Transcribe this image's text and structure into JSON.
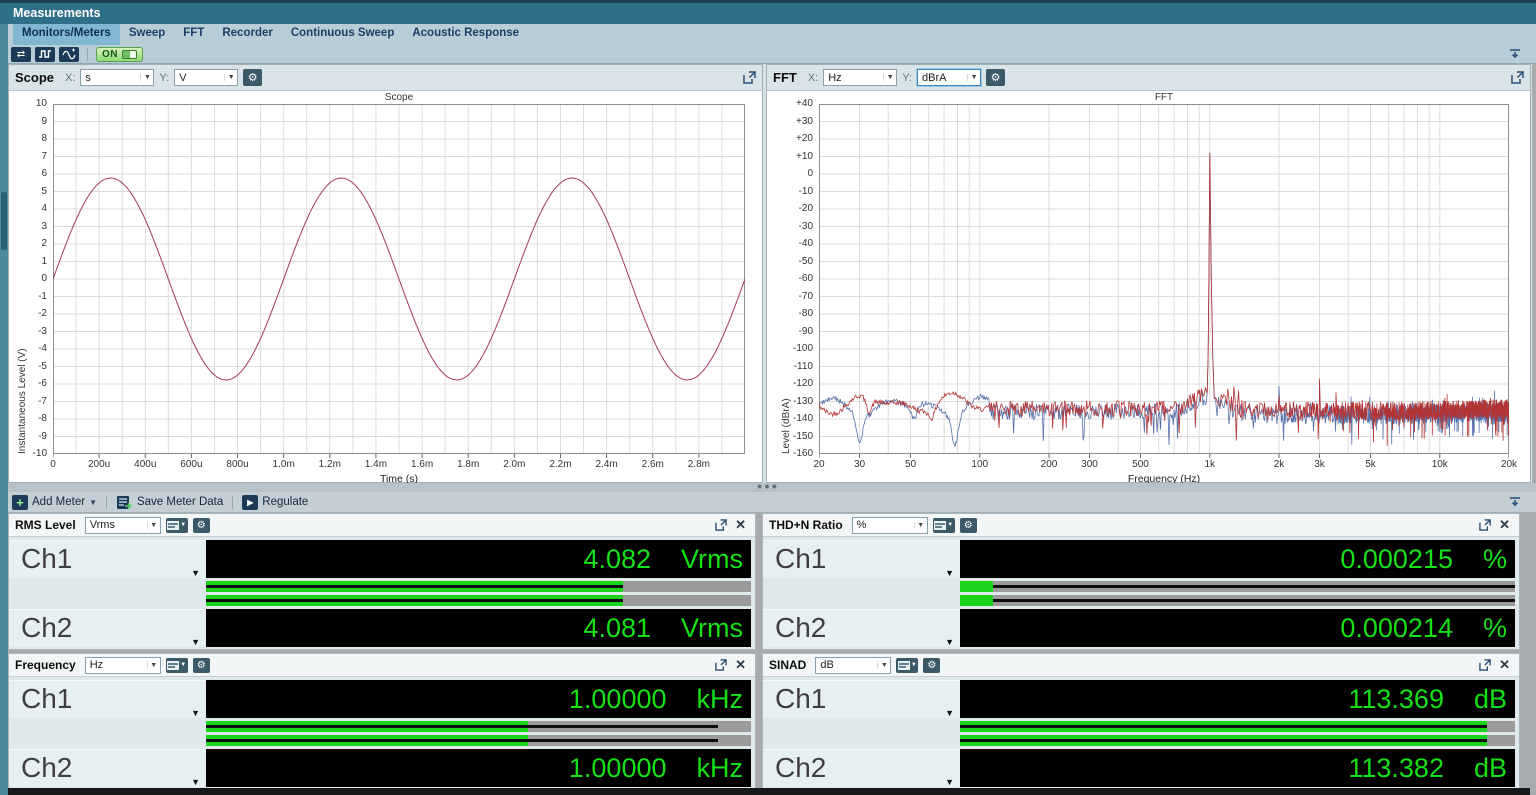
{
  "titlebar": {
    "title": "Measurements"
  },
  "tabs": {
    "items": [
      {
        "label": "Monitors/Meters",
        "selected": true
      },
      {
        "label": "Sweep",
        "selected": false
      },
      {
        "label": "FFT",
        "selected": false
      },
      {
        "label": "Recorder",
        "selected": false
      },
      {
        "label": "Continuous Sweep",
        "selected": false
      },
      {
        "label": "Acoustic Response",
        "selected": false
      }
    ]
  },
  "toolbar": {
    "on_label": "ON"
  },
  "scope_panel": {
    "title": "Scope",
    "x_label": "X:",
    "x_value": "s",
    "y_label": "Y:",
    "y_value": "V"
  },
  "fft_panel": {
    "title": "FFT",
    "x_label": "X:",
    "x_value": "Hz",
    "y_label": "Y:",
    "y_value": "dBrA"
  },
  "meter_toolbar": {
    "add_meter": "Add Meter",
    "save_meter_data": "Save Meter Data",
    "regulate": "Regulate"
  },
  "meters": [
    {
      "title": "RMS Level",
      "unit_selector": "Vrms",
      "channels": [
        {
          "name": "Ch1",
          "value": "4.082",
          "unit": "Vrms"
        },
        {
          "name": "Ch2",
          "value": "4.081",
          "unit": "Vrms"
        }
      ],
      "bars": {
        "green_pct": 76.5,
        "line_from": 0,
        "line_to": 76.5
      }
    },
    {
      "title": "THD+N Ratio",
      "unit_selector": "%",
      "channels": [
        {
          "name": "Ch1",
          "value": "0.000215",
          "unit": "%"
        },
        {
          "name": "Ch2",
          "value": "0.000214",
          "unit": "%"
        }
      ],
      "bars": {
        "green_pct": 6,
        "line_from": 6,
        "line_to": 100
      }
    },
    {
      "title": "Frequency",
      "unit_selector": "Hz",
      "channels": [
        {
          "name": "Ch1",
          "value": "1.00000",
          "unit": "kHz"
        },
        {
          "name": "Ch2",
          "value": "1.00000",
          "unit": "kHz"
        }
      ],
      "bars": {
        "green_pct": 59,
        "line_from": 0,
        "line_to": 94
      }
    },
    {
      "title": "SINAD",
      "unit_selector": "dB",
      "channels": [
        {
          "name": "Ch1",
          "value": "113.369",
          "unit": "dB"
        },
        {
          "name": "Ch2",
          "value": "113.382",
          "unit": "dB"
        }
      ],
      "bars": {
        "green_pct": 95,
        "line_from": 0,
        "line_to": 95
      }
    }
  ],
  "chart_data": [
    {
      "type": "line",
      "title": "Scope",
      "xlabel": "Time (s)",
      "ylabel": "Instantaneous Level (V)",
      "xlim_s": [
        0,
        0.003
      ],
      "ylim": [
        -10,
        10
      ],
      "grid": true,
      "y_ticks": [
        "10",
        "9",
        "8",
        "7",
        "6",
        "5",
        "4",
        "3",
        "2",
        "1",
        "0",
        "-1",
        "-2",
        "-3",
        "-4",
        "-5",
        "-6",
        "-7",
        "-8",
        "-9",
        "-10"
      ],
      "x_ticks": [
        {
          "t": 0.0,
          "label": "0"
        },
        {
          "t": 0.0002,
          "label": "200u"
        },
        {
          "t": 0.0004,
          "label": "400u"
        },
        {
          "t": 0.0006,
          "label": "600u"
        },
        {
          "t": 0.0008,
          "label": "800u"
        },
        {
          "t": 0.001,
          "label": "1.0m"
        },
        {
          "t": 0.0012,
          "label": "1.2m"
        },
        {
          "t": 0.0014,
          "label": "1.4m"
        },
        {
          "t": 0.0016,
          "label": "1.6m"
        },
        {
          "t": 0.0018,
          "label": "1.8m"
        },
        {
          "t": 0.002,
          "label": "2.0m"
        },
        {
          "t": 0.0022,
          "label": "2.2m"
        },
        {
          "t": 0.0024,
          "label": "2.4m"
        },
        {
          "t": 0.0026,
          "label": "2.6m"
        },
        {
          "t": 0.0028,
          "label": "2.8m"
        }
      ],
      "series": [
        {
          "name": "Ch1",
          "waveform": "sine",
          "amplitude_v": 5.77,
          "frequency_hz": 1000,
          "phase_deg": 0,
          "color": "#a23b50"
        }
      ]
    },
    {
      "type": "line",
      "title": "FFT",
      "xlabel": "Frequency (Hz)",
      "ylabel": "Level (dBrA)",
      "xscale": "log",
      "xlim_hz": [
        20,
        20000
      ],
      "ylim": [
        -160,
        40
      ],
      "grid": true,
      "y_ticks": [
        "+40",
        "+30",
        "+20",
        "+10",
        "0",
        "-10",
        "-20",
        "-30",
        "-40",
        "-50",
        "-60",
        "-70",
        "-80",
        "-90",
        "-100",
        "-110",
        "-120",
        "-130",
        "-140",
        "-150",
        "-160"
      ],
      "x_ticks": [
        {
          "f": 20,
          "label": "20"
        },
        {
          "f": 30,
          "label": "30"
        },
        {
          "f": 50,
          "label": "50"
        },
        {
          "f": 100,
          "label": "100"
        },
        {
          "f": 200,
          "label": "200"
        },
        {
          "f": 300,
          "label": "300"
        },
        {
          "f": 500,
          "label": "500"
        },
        {
          "f": 1000,
          "label": "1k"
        },
        {
          "f": 2000,
          "label": "2k"
        },
        {
          "f": 3000,
          "label": "3k"
        },
        {
          "f": 5000,
          "label": "5k"
        },
        {
          "f": 10000,
          "label": "10k"
        },
        {
          "f": 20000,
          "label": "20k"
        }
      ],
      "series": [
        {
          "name": "Ch2",
          "color": "#5570ab",
          "seed": 9,
          "noise_floor_db": -137,
          "fundamental": {
            "freq_hz": 1000,
            "level_db": 12
          },
          "spurs": [
            {
              "freq_hz": 2000,
              "level_db": -121
            },
            {
              "freq_hz": 1240,
              "level_db": -130
            },
            {
              "freq_hz": 9300,
              "level_db": -129
            }
          ],
          "low_dips": [
            {
              "freq_hz": 30,
              "depth_db": 15
            },
            {
              "freq_hz": 52,
              "depth_db": 8
            },
            {
              "freq_hz": 78,
              "depth_db": 17
            }
          ]
        },
        {
          "name": "Ch1",
          "color": "#b23434",
          "seed": 42,
          "noise_floor_db": -135,
          "fundamental": {
            "freq_hz": 1000,
            "level_db": 12
          },
          "spurs": [
            {
              "freq_hz": 2000,
              "level_db": -127
            },
            {
              "freq_hz": 3000,
              "level_db": -117
            },
            {
              "freq_hz": 1170,
              "level_db": -127
            },
            {
              "freq_hz": 4600,
              "level_db": -129
            }
          ],
          "low_dips": [
            {
              "freq_hz": 33,
              "depth_db": 8
            },
            {
              "freq_hz": 62,
              "depth_db": 6
            }
          ]
        }
      ]
    }
  ]
}
